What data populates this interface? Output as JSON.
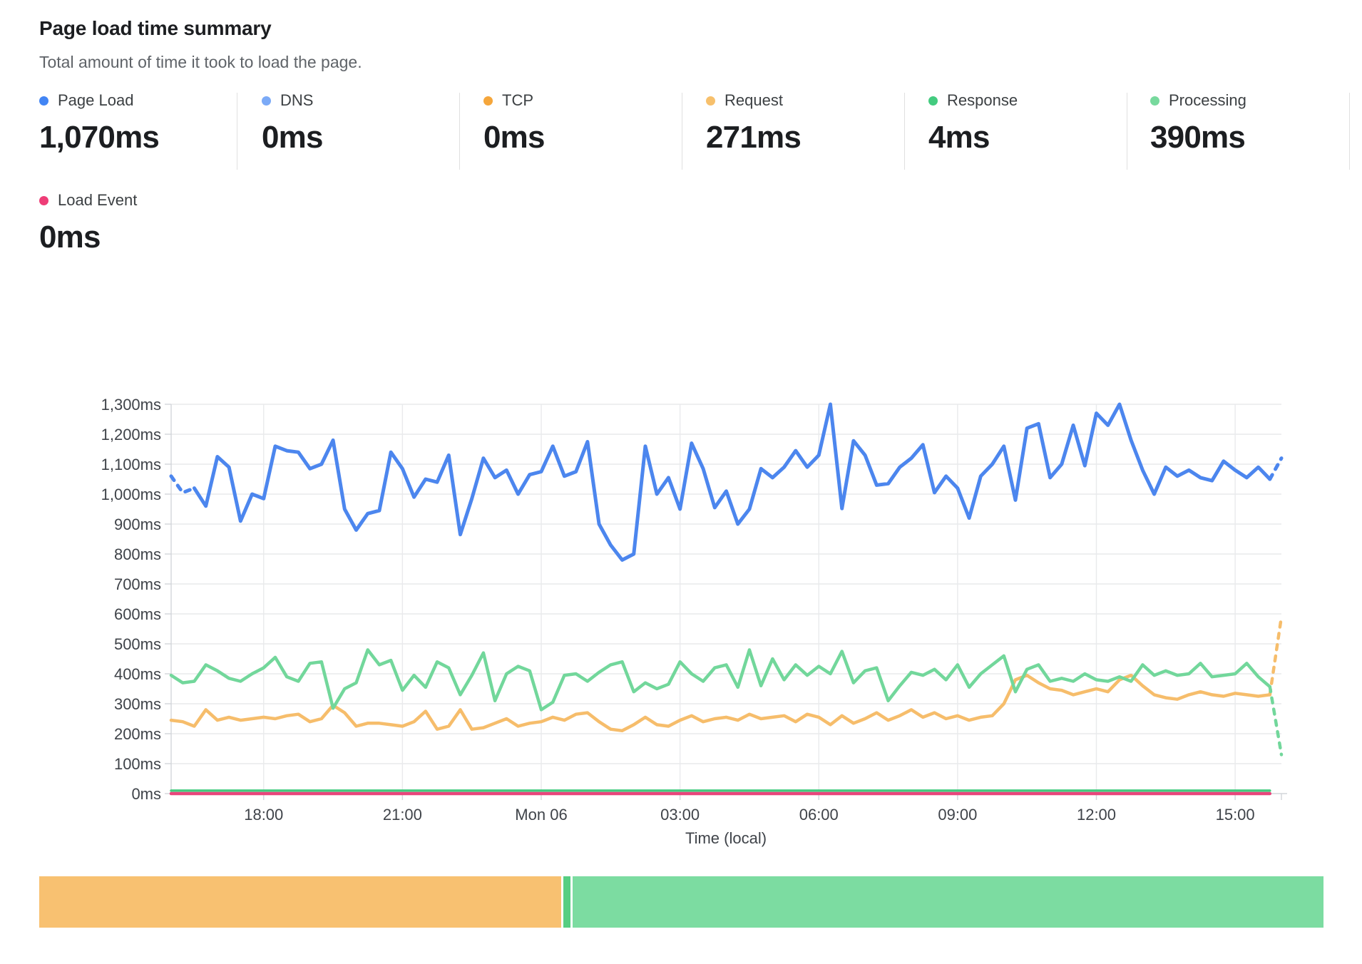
{
  "header": {
    "title": "Page load time summary",
    "subtitle": "Total amount of time it took to load the page."
  },
  "stats": [
    {
      "label": "Page Load",
      "value": "1,070ms",
      "color": "#4285f4"
    },
    {
      "label": "DNS",
      "value": "0ms",
      "color": "#7baaf7"
    },
    {
      "label": "TCP",
      "value": "0ms",
      "color": "#f5a63b"
    },
    {
      "label": "Request",
      "value": "271ms",
      "color": "#f7c06c"
    },
    {
      "label": "Response",
      "value": "4ms",
      "color": "#43cb7f"
    },
    {
      "label": "Processing",
      "value": "390ms",
      "color": "#77d99d"
    }
  ],
  "stats_row2": {
    "label": "Load Event",
    "value": "0ms",
    "color": "#ee3d77"
  },
  "chart_data": {
    "type": "line",
    "title": "Page load time summary",
    "xlabel": "Time (local)",
    "ylabel": "",
    "ylim": [
      0,
      1300
    ],
    "grid": true,
    "legend_position": "top",
    "y_tick_labels": [
      "0ms",
      "100ms",
      "200ms",
      "300ms",
      "400ms",
      "500ms",
      "600ms",
      "700ms",
      "800ms",
      "900ms",
      "1,000ms",
      "1,100ms",
      "1,200ms",
      "1,300ms"
    ],
    "x_tick_labels": [
      "18:00",
      "21:00",
      "Mon 06",
      "03:00",
      "06:00",
      "09:00",
      "12:00",
      "15:00"
    ],
    "series": [
      {
        "id": "request",
        "name": "Request",
        "color": "#f6bd6b",
        "width": 4.5,
        "dash_end": true,
        "values": [
          245,
          240,
          225,
          280,
          245,
          255,
          245,
          250,
          255,
          250,
          260,
          265,
          240,
          250,
          295,
          270,
          225,
          235,
          235,
          230,
          225,
          240,
          275,
          215,
          225,
          280,
          215,
          220,
          235,
          250,
          225,
          235,
          240,
          255,
          245,
          265,
          270,
          240,
          215,
          210,
          230,
          255,
          230,
          225,
          245,
          260,
          240,
          250,
          255,
          245,
          265,
          250,
          255,
          260,
          240,
          265,
          255,
          230,
          260,
          235,
          250,
          270,
          245,
          260,
          280,
          255,
          270,
          250,
          260,
          245,
          255,
          260,
          300,
          380,
          395,
          370,
          350,
          345,
          330,
          340,
          350,
          340,
          380,
          395,
          360,
          330,
          320,
          315,
          330,
          340,
          330,
          325,
          335,
          330,
          325,
          330,
          590
        ]
      },
      {
        "id": "processing",
        "name": "Processing",
        "color": "#72d79b",
        "width": 4.5,
        "dash_end": true,
        "values": [
          395,
          370,
          375,
          430,
          410,
          385,
          375,
          400,
          420,
          455,
          390,
          375,
          435,
          440,
          285,
          350,
          370,
          480,
          430,
          445,
          345,
          395,
          355,
          440,
          420,
          330,
          395,
          470,
          310,
          400,
          425,
          410,
          280,
          305,
          395,
          400,
          375,
          405,
          430,
          440,
          340,
          370,
          350,
          365,
          440,
          400,
          375,
          420,
          430,
          355,
          480,
          360,
          450,
          380,
          430,
          395,
          425,
          400,
          475,
          370,
          410,
          420,
          310,
          360,
          405,
          395,
          415,
          380,
          430,
          355,
          400,
          430,
          460,
          340,
          415,
          430,
          375,
          385,
          375,
          400,
          380,
          375,
          390,
          375,
          430,
          395,
          410,
          395,
          400,
          435,
          390,
          395,
          400,
          435,
          390,
          357,
          130
        ]
      },
      {
        "id": "response",
        "name": "Response",
        "color": "#43cb7f",
        "width": 3.5,
        "flat": 4,
        "y_offset": -2.5
      },
      {
        "id": "load_event",
        "name": "Load Event",
        "color": "#e8457b",
        "width": 4.5,
        "flat": 0
      },
      {
        "id": "page_load",
        "name": "Page Load",
        "color": "#4c86ee",
        "width": 5,
        "dash_start": true,
        "dash_end": true,
        "values": [
          1060,
          1005,
          1020,
          960,
          1125,
          1090,
          910,
          1000,
          985,
          1160,
          1145,
          1140,
          1085,
          1100,
          1180,
          950,
          880,
          935,
          945,
          1140,
          1085,
          990,
          1050,
          1040,
          1130,
          865,
          985,
          1120,
          1055,
          1080,
          1000,
          1065,
          1075,
          1160,
          1060,
          1075,
          1175,
          900,
          830,
          780,
          800,
          1160,
          1000,
          1055,
          950,
          1170,
          1085,
          955,
          1010,
          900,
          950,
          1085,
          1055,
          1090,
          1145,
          1090,
          1130,
          1300,
          952,
          1178,
          1130,
          1030,
          1035,
          1090,
          1120,
          1165,
          1005,
          1060,
          1020,
          920,
          1060,
          1100,
          1160,
          980,
          1220,
          1235,
          1055,
          1100,
          1230,
          1095,
          1270,
          1230,
          1300,
          1180,
          1080,
          1000,
          1090,
          1060,
          1080,
          1055,
          1045,
          1110,
          1080,
          1055,
          1090,
          1050,
          1120
        ]
      }
    ]
  },
  "breakdown_bar": {
    "segments": [
      {
        "name": "Request",
        "value": 271,
        "color": "#f8c171"
      },
      {
        "name": "Response",
        "value": 4,
        "color": "#56ce82"
      },
      {
        "name": "Processing",
        "value": 390,
        "color": "#7cdca1"
      }
    ]
  },
  "colors": {
    "grid": "#e9eaec",
    "axis": "#d2d5da",
    "tick_label": "#3f4349"
  }
}
